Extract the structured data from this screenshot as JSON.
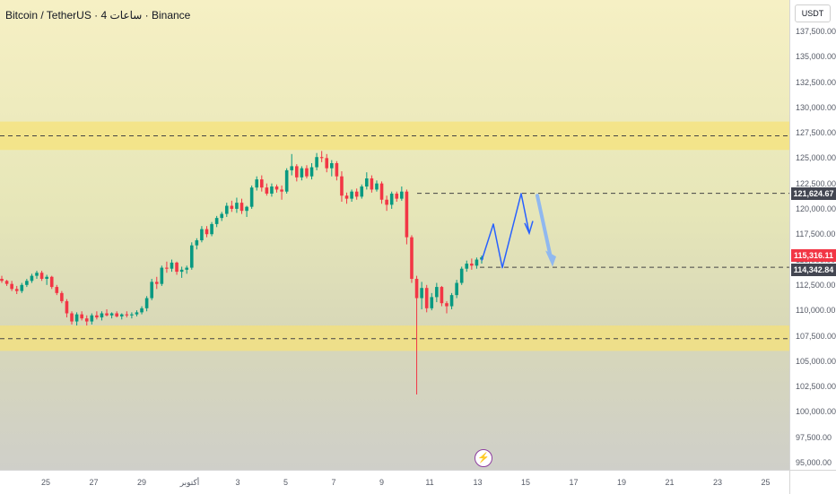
{
  "header": {
    "symbol_title": "Bitcoin / TetherUS · 4 ساعات · Binance"
  },
  "price_axis": {
    "currency": "USDT",
    "ticks": [
      "137,500.00",
      "135,000.00",
      "132,500.00",
      "130,000.00",
      "127,500.00",
      "125,000.00",
      "122,500.00",
      "120,000.00",
      "117,500.00",
      "115,000.00",
      "112,500.00",
      "110,000.00",
      "107,500.00",
      "105,000.00",
      "102,500.00",
      "100,000.00",
      "97,500.00",
      "95,000.00"
    ],
    "tags": [
      {
        "label": "121,624.67",
        "color": "#434651"
      },
      {
        "label": "115,316.11",
        "color": "#f23645"
      },
      {
        "label": "114,342.84",
        "color": "#434651"
      }
    ]
  },
  "time_axis": {
    "labels": [
      "25",
      "27",
      "29",
      "أكتوبر",
      "3",
      "5",
      "7",
      "9",
      "11",
      "13",
      "15",
      "17",
      "19",
      "21",
      "23",
      "25"
    ]
  },
  "badge": {
    "icon": "lightning-icon",
    "color": "#8e3fa0"
  },
  "chart_data": {
    "type": "candlestick",
    "instrument": "BTCUSDT",
    "interval": "4h",
    "y_range": [
      94500,
      139000
    ],
    "x_range_days": [
      "Sep 23",
      "Oct 26"
    ],
    "colors": {
      "up": "#089981",
      "down": "#f23645",
      "zone": "#f5e27a",
      "projection": "#2962ff",
      "arrow": "#90b8ef"
    },
    "zones": [
      {
        "name": "upper-resistance",
        "from": 125900,
        "to": 128700
      },
      {
        "name": "lower-support",
        "from": 106100,
        "to": 108600
      }
    ],
    "dashed_levels": [
      127300,
      121624.67,
      114342.84,
      107300
    ],
    "projection_path": [
      {
        "date": "Oct 13.5",
        "price": 115000
      },
      {
        "date": "Oct 14.2",
        "price": 118600
      },
      {
        "date": "Oct 14.8",
        "price": 114300
      },
      {
        "date": "Oct 16.0",
        "price": 121600
      },
      {
        "date": "Oct 16.4",
        "price": 117700
      }
    ],
    "forecast_arrow": {
      "from": {
        "date": "Oct 16.7",
        "price": 121400
      },
      "to": {
        "date": "Oct 17.5",
        "price": 114500
      }
    },
    "candles": [
      [
        113200,
        113500,
        112800,
        113000
      ],
      [
        113000,
        113100,
        112500,
        112700
      ],
      [
        112700,
        113000,
        112000,
        112200
      ],
      [
        112200,
        112500,
        111700,
        112000
      ],
      [
        112000,
        112800,
        111800,
        112600
      ],
      [
        112600,
        113200,
        112400,
        113000
      ],
      [
        113000,
        113700,
        112800,
        113500
      ],
      [
        113500,
        114000,
        113200,
        113800
      ],
      [
        113800,
        114000,
        113000,
        113200
      ],
      [
        113200,
        113600,
        112600,
        113400
      ],
      [
        113400,
        113500,
        112200,
        112400
      ],
      [
        112400,
        112600,
        111600,
        111800
      ],
      [
        111800,
        112000,
        110800,
        111000
      ],
      [
        111000,
        111200,
        109400,
        109800
      ],
      [
        109800,
        110000,
        108700,
        109000
      ],
      [
        109000,
        109900,
        108600,
        109700
      ],
      [
        109700,
        110000,
        109100,
        109300
      ],
      [
        109300,
        109600,
        108600,
        109000
      ],
      [
        109000,
        109800,
        108700,
        109600
      ],
      [
        109600,
        110000,
        109200,
        109400
      ],
      [
        109400,
        110000,
        109100,
        109800
      ],
      [
        109800,
        110200,
        109500,
        109600
      ],
      [
        109600,
        109900,
        109300,
        109800
      ],
      [
        109800,
        110000,
        109400,
        109500
      ],
      [
        109500,
        109800,
        109200,
        109700
      ],
      [
        109700,
        110000,
        109400,
        109600
      ],
      [
        109600,
        109900,
        109300,
        109700
      ],
      [
        109700,
        110100,
        109500,
        109900
      ],
      [
        109900,
        110500,
        109700,
        110300
      ],
      [
        110300,
        111500,
        110000,
        111300
      ],
      [
        111300,
        113200,
        111100,
        112900
      ],
      [
        112900,
        113400,
        112200,
        112700
      ],
      [
        112700,
        114500,
        112500,
        114300
      ],
      [
        114300,
        114900,
        113800,
        114200
      ],
      [
        114200,
        115100,
        113900,
        114800
      ],
      [
        114800,
        114900,
        113600,
        113900
      ],
      [
        113900,
        114400,
        113300,
        114100
      ],
      [
        114100,
        114500,
        113700,
        114300
      ],
      [
        114300,
        116800,
        114100,
        116500
      ],
      [
        116500,
        117200,
        116100,
        117000
      ],
      [
        117000,
        118400,
        116800,
        118100
      ],
      [
        118100,
        118400,
        117300,
        117600
      ],
      [
        117600,
        118800,
        117400,
        118600
      ],
      [
        118600,
        119400,
        118300,
        119200
      ],
      [
        119200,
        119800,
        118900,
        119600
      ],
      [
        119600,
        120700,
        119300,
        120400
      ],
      [
        120400,
        120900,
        119800,
        120100
      ],
      [
        120100,
        121200,
        119700,
        120700
      ],
      [
        120700,
        121100,
        119600,
        119900
      ],
      [
        119900,
        120400,
        119300,
        120300
      ],
      [
        120300,
        122400,
        120100,
        122200
      ],
      [
        122200,
        123300,
        121900,
        123000
      ],
      [
        123000,
        123400,
        121800,
        122200
      ],
      [
        122200,
        122600,
        121400,
        121600
      ],
      [
        121600,
        122600,
        121300,
        122300
      ],
      [
        122300,
        122500,
        121700,
        122000
      ],
      [
        122000,
        122400,
        121000,
        121800
      ],
      [
        121800,
        124100,
        121600,
        123900
      ],
      [
        123900,
        125500,
        123400,
        124300
      ],
      [
        124300,
        124500,
        122800,
        123200
      ],
      [
        123200,
        124300,
        122900,
        124100
      ],
      [
        124100,
        124400,
        123100,
        123300
      ],
      [
        123300,
        124600,
        123000,
        124200
      ],
      [
        124200,
        125600,
        123900,
        125200
      ],
      [
        125200,
        125800,
        124700,
        125100
      ],
      [
        125100,
        125500,
        123700,
        124100
      ],
      [
        124100,
        124900,
        123300,
        124600
      ],
      [
        124600,
        124800,
        122900,
        123300
      ],
      [
        123300,
        123800,
        120800,
        121400
      ],
      [
        121400,
        121700,
        120600,
        121100
      ],
      [
        121100,
        122000,
        120800,
        121800
      ],
      [
        121800,
        122100,
        121000,
        121300
      ],
      [
        121300,
        122500,
        121100,
        122300
      ],
      [
        122300,
        123700,
        122000,
        123100
      ],
      [
        123100,
        123400,
        121700,
        122000
      ],
      [
        122000,
        122900,
        121800,
        122600
      ],
      [
        122600,
        122800,
        120600,
        121000
      ],
      [
        121000,
        121400,
        119900,
        120500
      ],
      [
        120500,
        121800,
        120100,
        121600
      ],
      [
        121600,
        121800,
        120800,
        121100
      ],
      [
        121100,
        122300,
        120900,
        121800
      ],
      [
        121800,
        122000,
        116600,
        117300
      ],
      [
        117300,
        117500,
        112800,
        113200
      ],
      [
        113200,
        113500,
        101800,
        111300
      ],
      [
        111300,
        112900,
        110200,
        112300
      ],
      [
        112300,
        112600,
        109900,
        110300
      ],
      [
        110300,
        111800,
        110100,
        111400
      ],
      [
        111400,
        112800,
        110900,
        112400
      ],
      [
        112400,
        112500,
        110500,
        110800
      ],
      [
        110800,
        111000,
        109800,
        110500
      ],
      [
        110500,
        111800,
        110200,
        111600
      ],
      [
        111600,
        113100,
        111300,
        112800
      ],
      [
        112800,
        114400,
        112600,
        114200
      ],
      [
        114200,
        115000,
        113900,
        114700
      ],
      [
        114700,
        115200,
        114100,
        114500
      ],
      [
        114500,
        115300,
        114200,
        115100
      ],
      [
        115100,
        115500,
        114700,
        115316
      ]
    ]
  }
}
